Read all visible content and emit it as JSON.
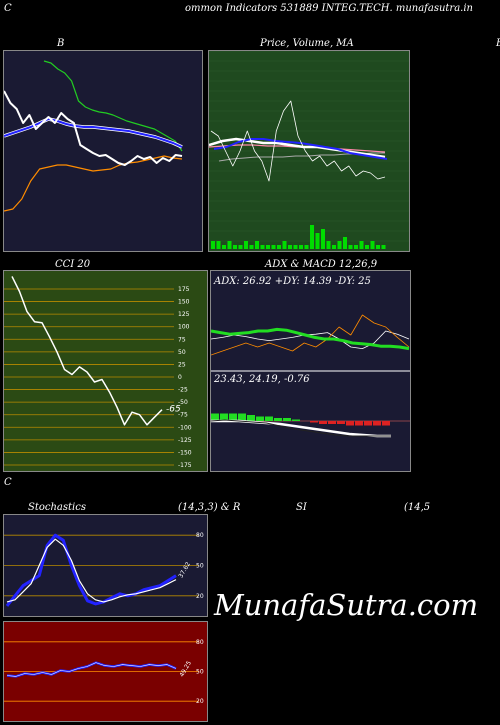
{
  "header": {
    "left_char": "C",
    "title": "ommon  Indicators 531889 INTEG.TECH. munafasutra.in"
  },
  "panels": {
    "bb": {
      "label": "B"
    },
    "price": {
      "label": "Price,  Volume, MA",
      "label_overlap": "Price",
      "label_right": "B"
    },
    "cci": {
      "label": "CCI 20"
    },
    "adx": {
      "label": "ADX  & MACD 12,26,9",
      "adx_text": "ADX: 26.92  +DY: 14.39 -DY: 25",
      "macd_text": "23.43,  24.19,  -0.76"
    },
    "stoch": {
      "label_left": "Stochastics",
      "label_mid": "(14,3,3) & R",
      "label_si": "SI",
      "label_right": "(14,5"
    }
  },
  "watermark": "MunafaSutra.com",
  "colors": {
    "bb_bg": "#1a1a33",
    "price_bg": "#1f4a1f",
    "cci_bg": "#2b4a14",
    "adx_bg": "#1a1a33",
    "stoch_bg": "#1a1a33",
    "rsi_bg": "#7a0000"
  },
  "chart_data": [
    {
      "type": "line",
      "name": "bollinger",
      "series": [
        {
          "values": [
            190,
            188,
            182,
            178,
            170,
            150,
            144,
            141,
            139,
            138,
            136,
            133,
            130,
            128,
            126,
            124,
            122,
            118,
            114,
            110,
            100
          ]
        },
        {
          "values": [
            115,
            118,
            121,
            124,
            128,
            132,
            130,
            127,
            125,
            124,
            124,
            123,
            122,
            121,
            120,
            118,
            116,
            114,
            111,
            108,
            104
          ]
        },
        {
          "values": [
            40,
            42,
            52,
            70,
            82,
            84,
            86,
            86,
            84,
            82,
            80,
            81,
            82,
            86,
            88,
            89,
            91,
            93,
            95,
            93,
            92
          ]
        },
        {
          "values": [
            160,
            148,
            142,
            128,
            136,
            122,
            128,
            134,
            128,
            138,
            132,
            128,
            106,
            102,
            98,
            95,
            96,
            92,
            88,
            86,
            90,
            95,
            92,
            94,
            88,
            93,
            90,
            96,
            95
          ]
        }
      ]
    },
    {
      "type": "line",
      "name": "price_ma",
      "series": [
        {
          "values": [
            106,
            110,
            112,
            110,
            108,
            108,
            106,
            104,
            104,
            102,
            100,
            98,
            96,
            94
          ]
        },
        {
          "values": [
            102,
            104,
            109,
            112,
            112,
            110,
            109,
            108,
            106,
            104,
            102,
            98,
            96,
            94,
            92
          ]
        },
        {
          "values": [
            104,
            105,
            106,
            106,
            105,
            105,
            104,
            104,
            103,
            102,
            101,
            100,
            99
          ]
        },
        {
          "values": [
            90,
            92,
            93,
            94,
            94,
            94,
            95,
            95,
            96,
            96,
            97,
            97,
            98,
            98
          ]
        }
      ],
      "volume": [
        2,
        2,
        1,
        2,
        1,
        1,
        2,
        1,
        2,
        1,
        1,
        1,
        1,
        2,
        1,
        1,
        1,
        1,
        6,
        4,
        5,
        2,
        1,
        2,
        3,
        1,
        1,
        2,
        1,
        2,
        1,
        1
      ]
    },
    {
      "type": "line",
      "name": "cci",
      "ylim": [
        -175,
        175
      ],
      "y_ticks": [
        175,
        150,
        125,
        100,
        75,
        50,
        25,
        0,
        -25,
        -50,
        -75,
        -100,
        -125,
        -150,
        -175
      ],
      "values": [
        200,
        170,
        130,
        110,
        108,
        80,
        50,
        15,
        5,
        20,
        10,
        -10,
        -5,
        -30,
        -60,
        -95,
        -70,
        -75,
        -95,
        -80,
        -65
      ],
      "last_label": "-65"
    },
    {
      "type": "line",
      "name": "adx_macd",
      "adx": {
        "values": [
          50,
          48,
          46,
          47,
          48,
          50,
          50,
          52,
          51,
          48,
          45,
          42,
          40,
          40,
          38,
          35,
          34,
          33,
          31,
          31,
          30,
          28
        ]
      },
      "plus_dy": {
        "values": [
          40,
          42,
          45,
          43,
          40,
          38,
          40,
          42,
          45,
          46,
          48,
          40,
          30,
          28,
          35,
          50,
          46,
          40
        ]
      },
      "minus_dy": {
        "values": [
          20,
          25,
          30,
          35,
          30,
          35,
          30,
          25,
          35,
          30,
          40,
          55,
          45,
          70,
          60,
          55,
          42,
          30
        ]
      },
      "macd": {
        "values": [
          0,
          1,
          0,
          -1,
          -2,
          -5,
          -8,
          -10,
          -12,
          -14,
          -15,
          -15,
          -15,
          -15
        ]
      },
      "signal": {
        "values": [
          0,
          0,
          0,
          -1,
          -2,
          -3,
          -5,
          -7,
          -9,
          -11,
          -13,
          -14,
          -15,
          -15
        ]
      },
      "histogram": [
        5,
        5,
        5,
        5,
        4,
        3,
        3,
        2,
        2,
        1,
        0,
        -1,
        -2,
        -2,
        -2,
        -3,
        -3,
        -3,
        -3,
        -3
      ]
    },
    {
      "type": "line",
      "name": "stochastics",
      "y_ticks": [
        80,
        50,
        20
      ],
      "k": {
        "values": [
          10,
          20,
          30,
          35,
          40,
          70,
          80,
          75,
          50,
          30,
          15,
          12,
          14,
          18,
          22,
          20,
          22,
          26,
          28,
          30,
          35,
          40
        ]
      },
      "d": {
        "values": [
          14,
          16,
          24,
          32,
          50,
          68,
          76,
          70,
          55,
          35,
          22,
          16,
          14,
          16,
          19,
          21,
          22,
          24,
          26,
          28,
          32,
          36
        ]
      },
      "last_label": "37.62"
    },
    {
      "type": "line",
      "name": "rsi",
      "y_ticks": [
        80,
        50,
        20
      ],
      "values": [
        46,
        45,
        48,
        47,
        49,
        47,
        51,
        50,
        53,
        55,
        59,
        56,
        55,
        57,
        56,
        55,
        57,
        56,
        57,
        53
      ],
      "last_label": "49.25"
    }
  ]
}
